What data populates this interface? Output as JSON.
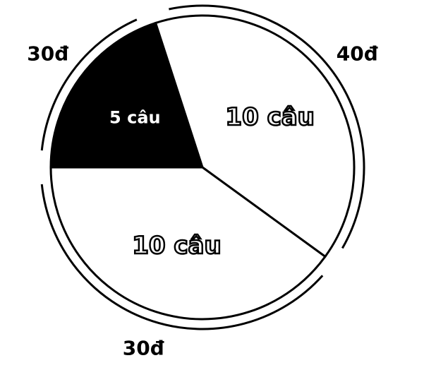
{
  "chart_data": {
    "type": "pie",
    "values": [
      5,
      10,
      10
    ],
    "value_labels": [
      "5 câu",
      "10 câu",
      "10 câu"
    ],
    "colors": [
      "#000000",
      "#ffffff",
      "#ffffff"
    ],
    "arcs": {
      "values": [
        30,
        40,
        30
      ],
      "value_labels": [
        "30đ",
        "40đ",
        "30đ"
      ]
    }
  }
}
